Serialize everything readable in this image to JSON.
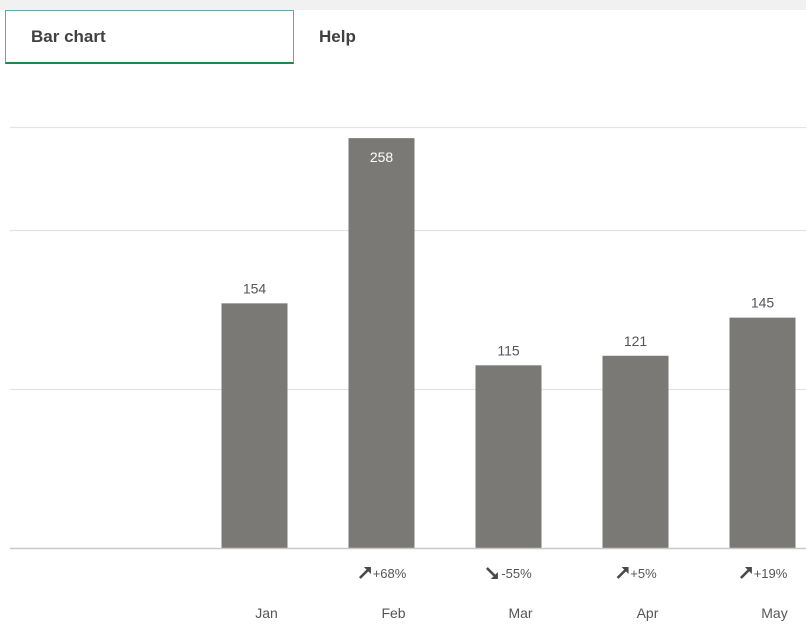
{
  "tabs": {
    "active_label": "Bar chart",
    "help_label": "Help"
  },
  "chart_data": {
    "type": "bar",
    "title": "",
    "xlabel": "",
    "ylabel": "",
    "categories": [
      "Jan",
      "Feb",
      "Mar",
      "Apr",
      "May"
    ],
    "values": [
      154,
      258,
      115,
      121,
      145
    ],
    "value_labels": [
      "154",
      "258",
      "115",
      "121",
      "145"
    ],
    "changes": [
      null,
      {
        "direction": "up",
        "text": "+68%"
      },
      {
        "direction": "down",
        "text": "-55%"
      },
      {
        "direction": "up",
        "text": "+5%"
      },
      {
        "direction": "up",
        "text": "+19%"
      }
    ],
    "ylim": [
      0,
      265
    ],
    "gridlines_at": [
      100,
      200,
      265
    ],
    "grid": true,
    "bar_color": "#7a7976",
    "gridline_color": "#e3e3e3",
    "axis_color": "#c9c9c9",
    "label_color": "#555555",
    "inside_label_color": "#ffffff"
  }
}
